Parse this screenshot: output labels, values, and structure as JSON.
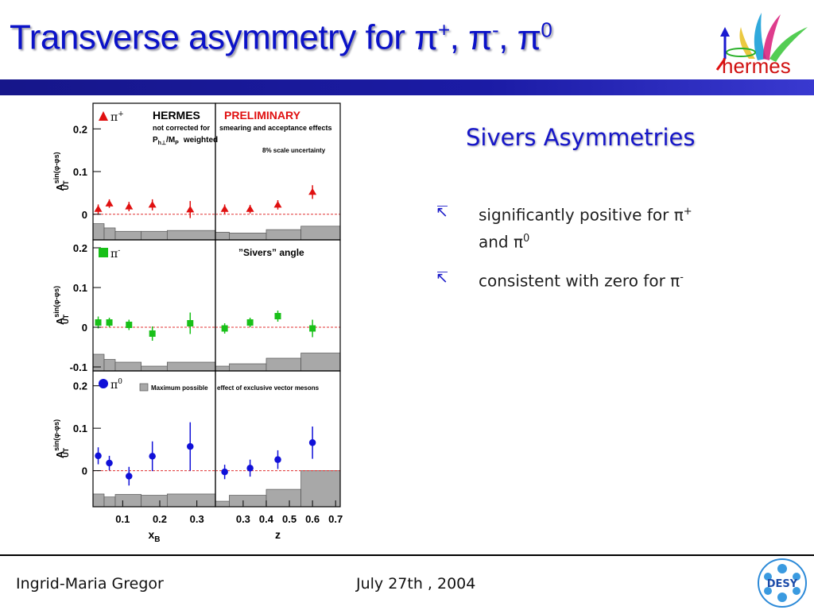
{
  "slide": {
    "title_main": "Transverse asymmetry for ",
    "title_particles": [
      {
        "base": "π",
        "sup": "+"
      },
      {
        "base": "π",
        "sup": "-"
      },
      {
        "base": "π",
        "sup": "0"
      }
    ],
    "title_sep": ", ",
    "subtitle": "Sivers Asymmetries",
    "bullet_icon": "arrow-up-left-icon",
    "bullets": [
      {
        "text_a": "significantly positive for ",
        "pa": "π",
        "pa_sup": "+",
        "text_b": " and ",
        "pb": "π",
        "pb_sup": "0"
      },
      {
        "text_a": "consistent with zero for ",
        "pa": "π",
        "pa_sup": "-"
      }
    ],
    "footer_author": "Ingrid-Maria Gregor",
    "footer_date": "July 27th , 2004",
    "logo_text": "hermes",
    "desy_text": "DESY",
    "colors": {
      "title": "#0b12c8",
      "bar": "#1b1ba5",
      "pi_plus": "#e01010",
      "pi_minus": "#18c018",
      "pi_zero": "#1010d8",
      "band": "#a8a8a8",
      "zero_line": "#e03030",
      "preliminary": "#e01010"
    }
  },
  "chart_data": {
    "type": "scatter",
    "layout": "3 rows x 2 columns",
    "ylabel": "A_UT^sin(φ-φs)",
    "ylabel_base": "A",
    "ylabel_sup": "sin(φ-φs)",
    "ylabel_sub": "UT",
    "columns": [
      {
        "xlabel": "x_B",
        "xlabel_base": "x",
        "xlabel_sub": "B",
        "xlim": [
          0.02,
          0.35
        ],
        "ticks": [
          0.1,
          0.2,
          0.3
        ],
        "tick_labels": [
          "0.1",
          "0.2",
          "0.3"
        ]
      },
      {
        "xlabel": "z",
        "xlabel_base": "z",
        "xlabel_sub": "",
        "xlim": [
          0.18,
          0.72
        ],
        "ticks": [
          0.3,
          0.4,
          0.5,
          0.6,
          0.7
        ],
        "tick_labels": [
          "0.3",
          "0.4",
          "0.5",
          "0.6",
          "0.7"
        ]
      }
    ],
    "annotations": {
      "experiment": "HERMES",
      "preliminary": "PRELIMINARY",
      "note_line1_left": "not corrected for",
      "note_line1_right": "smearing and acceptance effects",
      "weighting_base": "P",
      "weighting_sub": "h⊥",
      "weighting_rest": "/M",
      "weighting_sub2": "P",
      "weighting_word": "weighted",
      "scale_uncertainty": "8%  scale uncertainty",
      "angle": "”Sivers” angle",
      "band_legend_left": "Maximum possible",
      "band_legend_right": "effect of exclusive vector mesons"
    },
    "panels": [
      {
        "row": 0,
        "name": "π+",
        "label_base": "π",
        "label_sup": "+",
        "marker": "triangle",
        "color": "#e01010",
        "ylim": [
          -0.06,
          0.26
        ],
        "yticks": [
          0,
          0.1,
          0.2
        ],
        "ytick_labels": [
          "0",
          "0.1",
          "0.2"
        ],
        "xB": {
          "x": [
            0.034,
            0.064,
            0.117,
            0.18,
            0.282
          ],
          "y": [
            0.012,
            0.025,
            0.018,
            0.022,
            0.011
          ],
          "err": [
            0.011,
            0.01,
            0.011,
            0.013,
            0.02
          ],
          "band": {
            "edges": [
              0.02,
              0.05,
              0.08,
              0.15,
              0.22,
              0.35
            ],
            "top": [
              -0.022,
              -0.032,
              -0.04,
              -0.04,
              -0.038
            ]
          }
        },
        "z": {
          "x": [
            0.22,
            0.33,
            0.45,
            0.6
          ],
          "y": [
            0.012,
            0.012,
            0.022,
            0.052
          ],
          "err": [
            0.011,
            0.01,
            0.011,
            0.016
          ],
          "band": {
            "edges": [
              0.18,
              0.24,
              0.4,
              0.55,
              0.72
            ],
            "top": [
              -0.042,
              -0.044,
              -0.036,
              -0.028
            ]
          }
        }
      },
      {
        "row": 1,
        "name": "π-",
        "label_base": "π",
        "label_sup": "-",
        "marker": "square",
        "color": "#18c018",
        "ylim": [
          -0.11,
          0.22
        ],
        "yticks": [
          -0.1,
          0,
          0.1,
          0.2
        ],
        "ytick_labels": [
          "-0.1",
          "0",
          "0.1",
          "0.2"
        ],
        "xB": {
          "x": [
            0.034,
            0.064,
            0.117,
            0.18,
            0.282
          ],
          "y": [
            0.012,
            0.012,
            0.006,
            -0.016,
            0.01
          ],
          "err": [
            0.015,
            0.012,
            0.013,
            0.018,
            0.027
          ],
          "band": {
            "edges": [
              0.02,
              0.05,
              0.08,
              0.15,
              0.22,
              0.35
            ],
            "top": [
              -0.068,
              -0.081,
              -0.088,
              -0.098,
              -0.088
            ]
          }
        },
        "z": {
          "x": [
            0.22,
            0.33,
            0.45,
            0.6
          ],
          "y": [
            -0.003,
            0.012,
            0.028,
            -0.003
          ],
          "err": [
            0.013,
            0.012,
            0.014,
            0.022
          ],
          "band": {
            "edges": [
              0.18,
              0.24,
              0.4,
              0.55,
              0.72
            ],
            "top": [
              -0.098,
              -0.092,
              -0.078,
              -0.065
            ]
          }
        }
      },
      {
        "row": 2,
        "name": "π0",
        "label_base": "π",
        "label_sup": "0",
        "marker": "circle",
        "color": "#1010d8",
        "ylim": [
          -0.085,
          0.235
        ],
        "yticks": [
          0,
          0.1,
          0.2
        ],
        "ytick_labels": [
          "0",
          "0.1",
          "0.2"
        ],
        "xB": {
          "x": [
            0.034,
            0.064,
            0.117,
            0.18,
            0.282
          ],
          "y": [
            0.035,
            0.018,
            -0.013,
            0.034,
            0.057
          ],
          "err": [
            0.02,
            0.017,
            0.022,
            0.035,
            0.057
          ],
          "band": {
            "edges": [
              0.02,
              0.05,
              0.08,
              0.15,
              0.22,
              0.35
            ],
            "top": [
              -0.055,
              -0.062,
              -0.056,
              -0.058,
              -0.055
            ]
          }
        },
        "z": {
          "x": [
            0.22,
            0.33,
            0.45,
            0.6
          ],
          "y": [
            -0.003,
            0.006,
            0.026,
            0.066
          ],
          "err": [
            0.017,
            0.02,
            0.022,
            0.038
          ],
          "band": {
            "edges": [
              0.18,
              0.24,
              0.4,
              0.55,
              0.72
            ],
            "top": [
              -0.072,
              -0.058,
              -0.044,
              0.0
            ]
          }
        }
      }
    ]
  }
}
